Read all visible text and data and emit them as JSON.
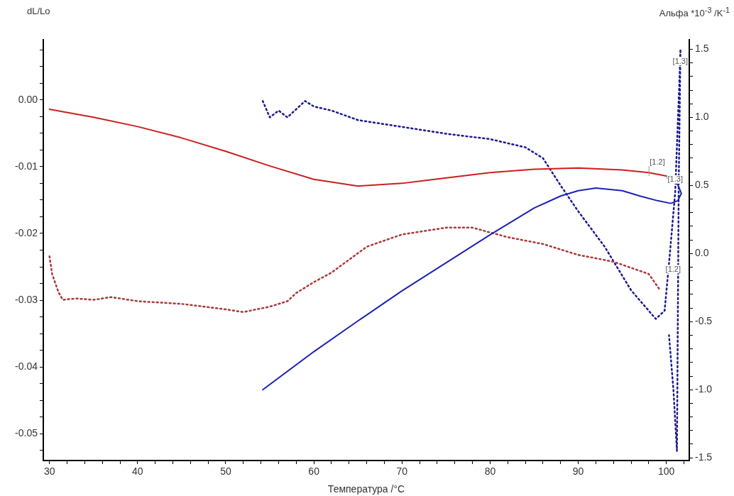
{
  "chart_data": {
    "type": "line",
    "xlabel": "Температура /°C",
    "ylabel": "dL/Lo",
    "y2label": "Альфа *10$^{-3}$ /K$^{-1}$",
    "xlim": [
      29.3,
      102.6
    ],
    "ylim": [
      -0.054,
      0.009
    ],
    "y2lim": [
      -1.52,
      1.57
    ],
    "xticks": [
      30,
      {
        "value": 32,
        "label": null
      },
      {
        "value": 34,
        "label": null
      },
      {
        "value": 36,
        "label": null
      },
      {
        "value": 38,
        "label": null
      },
      40,
      {
        "value": 42,
        "label": null
      },
      {
        "value": 44,
        "label": null
      },
      {
        "value": 46,
        "label": null
      },
      {
        "value": 48,
        "label": null
      },
      50,
      {
        "value": 52,
        "label": null
      },
      {
        "value": 54,
        "label": null
      },
      {
        "value": 56,
        "label": null
      },
      {
        "value": 58,
        "label": null
      },
      60,
      {
        "value": 62,
        "label": null
      },
      {
        "value": 64,
        "label": null
      },
      {
        "value": 66,
        "label": null
      },
      {
        "value": 68,
        "label": null
      },
      70,
      {
        "value": 72,
        "label": null
      },
      {
        "value": 74,
        "label": null
      },
      {
        "value": 76,
        "label": null
      },
      {
        "value": 78,
        "label": null
      },
      80,
      {
        "value": 82,
        "label": null
      },
      {
        "value": 84,
        "label": null
      },
      {
        "value": 86,
        "label": null
      },
      {
        "value": 88,
        "label": null
      },
      90,
      {
        "value": 92,
        "label": null
      },
      {
        "value": 94,
        "label": null
      },
      {
        "value": 96,
        "label": null
      },
      {
        "value": 98,
        "label": null
      },
      100,
      {
        "value": 102,
        "label": null
      }
    ],
    "yticks": [
      {
        "value": 0.0075,
        "label": null
      },
      {
        "value": 0.005,
        "label": null
      },
      {
        "value": 0.0025,
        "label": null
      },
      {
        "value": 0,
        "label": "0.00"
      },
      {
        "value": -0.0025,
        "label": null
      },
      {
        "value": -0.005,
        "label": null
      },
      {
        "value": -0.0075,
        "label": null
      },
      -0.01,
      {
        "value": -0.0125,
        "label": null
      },
      {
        "value": -0.015,
        "label": null
      },
      {
        "value": -0.0175,
        "label": null
      },
      -0.02,
      {
        "value": -0.0225,
        "label": null
      },
      {
        "value": -0.025,
        "label": null
      },
      {
        "value": -0.0275,
        "label": null
      },
      -0.03,
      {
        "value": -0.0325,
        "label": null
      },
      {
        "value": -0.035,
        "label": null
      },
      {
        "value": -0.0375,
        "label": null
      },
      -0.04,
      {
        "value": -0.0425,
        "label": null
      },
      {
        "value": -0.045,
        "label": null
      },
      {
        "value": -0.0475,
        "label": null
      },
      -0.05,
      {
        "value": -0.0525,
        "label": null
      }
    ],
    "y2ticks": [
      1.5,
      {
        "value": 1.4,
        "label": null
      },
      {
        "value": 1.3,
        "label": null
      },
      {
        "value": 1.2,
        "label": null
      },
      {
        "value": 1.1,
        "label": null
      },
      {
        "value": 1,
        "label": "1.0"
      },
      {
        "value": 0.9,
        "label": null
      },
      {
        "value": 0.8,
        "label": null
      },
      {
        "value": 0.7,
        "label": null
      },
      {
        "value": 0.6,
        "label": null
      },
      0.5,
      {
        "value": 0.4,
        "label": null
      },
      {
        "value": 0.3,
        "label": null
      },
      {
        "value": 0.2,
        "label": null
      },
      {
        "value": 0.1,
        "label": null
      },
      {
        "value": 0,
        "label": "0.0"
      },
      {
        "value": -0.1,
        "label": null
      },
      {
        "value": -0.2,
        "label": null
      },
      {
        "value": -0.3,
        "label": null
      },
      {
        "value": -0.4,
        "label": null
      },
      -0.5,
      {
        "value": -0.6,
        "label": null
      },
      {
        "value": -0.7,
        "label": null
      },
      {
        "value": -0.8,
        "label": null
      },
      {
        "value": -0.9,
        "label": null
      },
      {
        "value": -1,
        "label": "-1.0"
      },
      {
        "value": -1.1,
        "label": null
      },
      {
        "value": -1.2,
        "label": null
      },
      {
        "value": -1.3,
        "label": null
      },
      {
        "value": -1.4,
        "label": null
      },
      -1.5
    ],
    "marker": "none",
    "series": [
      {
        "color": "#cc1f1f",
        "line_style": "solid",
        "x": [
          30,
          35,
          40,
          45,
          50,
          55,
          60,
          65,
          70,
          75,
          80,
          85,
          90,
          95,
          98,
          100
        ],
        "values": [
          -0.0014,
          -0.0026,
          -0.004,
          -0.0057,
          -0.0077,
          -0.0099,
          -0.0119,
          -0.0129,
          -0.0125,
          -0.0117,
          -0.0109,
          -0.0104,
          -0.0102,
          -0.0105,
          -0.0109,
          -0.0114
        ]
      },
      {
        "color": "#1c23b0",
        "line_style": "solid",
        "x": [
          100.1,
          101.3,
          101.7,
          101.3,
          100.5,
          99,
          97,
          95,
          92,
          90,
          88,
          85,
          80,
          75,
          70,
          65,
          60,
          54.2
        ],
        "values": [
          -0.0117,
          -0.0127,
          -0.014,
          -0.0151,
          -0.0155,
          -0.0151,
          -0.0144,
          -0.0136,
          -0.0132,
          -0.0136,
          -0.0144,
          -0.0162,
          -0.0202,
          -0.0244,
          -0.0286,
          -0.0331,
          -0.0377,
          -0.0434
        ]
      },
      {
        "color": "#a83a3a",
        "line_style": "dotted",
        "axis": "y2",
        "x": [
          30,
          30.3,
          31,
          31.5,
          33,
          35,
          37,
          40,
          45,
          50,
          52,
          55,
          57,
          58,
          60,
          62,
          66,
          70,
          75,
          78,
          82,
          86,
          90,
          94,
          98,
          99.3
        ],
        "values": [
          -0.02,
          -0.15,
          -0.28,
          -0.34,
          -0.33,
          -0.34,
          -0.32,
          -0.35,
          -0.37,
          -0.41,
          -0.43,
          -0.39,
          -0.35,
          -0.29,
          -0.21,
          -0.14,
          0.05,
          0.14,
          0.19,
          0.19,
          0.12,
          0.07,
          -0.01,
          -0.06,
          -0.15,
          -0.27
        ]
      },
      {
        "color": "#1a1a8c",
        "line_style": "dotted",
        "axis": "y2",
        "x": [
          54.2,
          55,
          56,
          57,
          58,
          59,
          60,
          62,
          65,
          70,
          75,
          80,
          84,
          86,
          88,
          90,
          93,
          96,
          98.8,
          99.8,
          100.4,
          101,
          101.5,
          101.6,
          101.4,
          101.3,
          101.2,
          100.8,
          100.3
        ],
        "values": [
          1.12,
          1.0,
          1.05,
          1.0,
          1.06,
          1.12,
          1.08,
          1.05,
          0.98,
          0.93,
          0.88,
          0.84,
          0.78,
          0.7,
          0.5,
          0.31,
          0.05,
          -0.27,
          -0.48,
          -0.42,
          0.0,
          0.45,
          1.3,
          1.5,
          0.5,
          -0.5,
          -1.45,
          -1.0,
          -0.6
        ]
      }
    ],
    "annotations": [
      {
        "text": "[1.2]",
        "x": 100,
        "y": -0.0114
      },
      {
        "text": "[1.3]",
        "x": 100.1,
        "y": -0.0117
      },
      "[1.3]",
      "[1.2]"
    ]
  }
}
